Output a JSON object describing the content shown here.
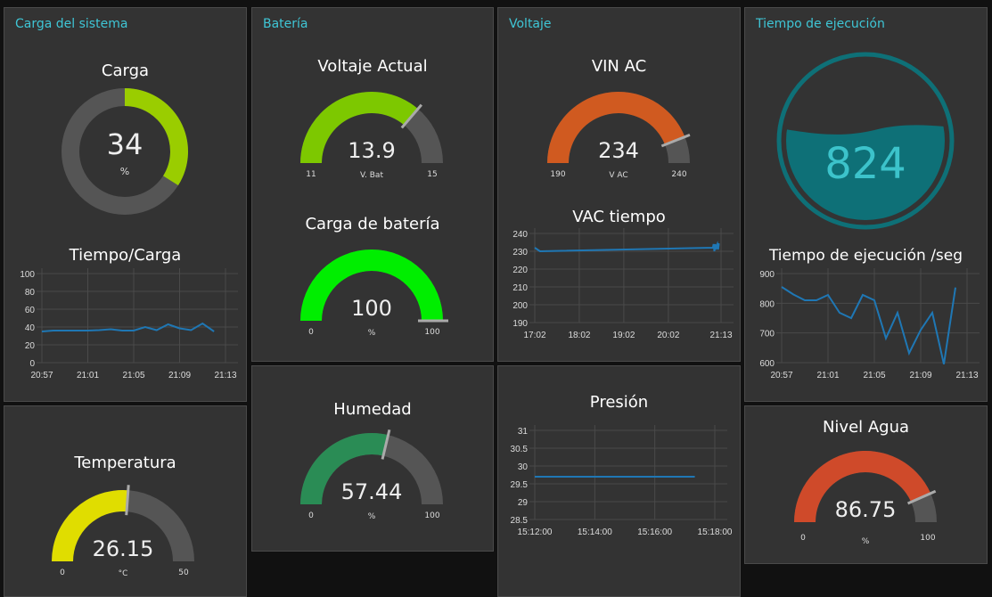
{
  "groups": {
    "carga": "Carga del sistema",
    "bateria": "Batería",
    "voltaje": "Voltaje",
    "tiempo": "Tiempo de ejecución"
  },
  "widgets": {
    "carga": {
      "title": "Carga",
      "value": "34",
      "unit": "%",
      "fraction": 0.34,
      "color": "#9acd00"
    },
    "voltaje_actual": {
      "title": "Voltaje Actual",
      "value": "13.9",
      "unit": "V. Bat",
      "min": "11",
      "max": "15",
      "fraction": 0.725,
      "color": "#7dc800"
    },
    "carga_bateria": {
      "title": "Carga de batería",
      "value": "100",
      "unit": "%",
      "min": "0",
      "max": "100",
      "fraction": 1.0,
      "color": "#00ee00"
    },
    "vin_ac": {
      "title": "VIN AC",
      "value": "234",
      "unit": "V AC",
      "min": "190",
      "max": "240",
      "fraction": 0.88,
      "color": "#d05a20"
    },
    "humedad": {
      "title": "Humedad",
      "value": "57.44",
      "unit": "%",
      "min": "0",
      "max": "100",
      "fraction": 0.5744,
      "color": "#2a8c55"
    },
    "temperatura": {
      "title": "Temperatura",
      "value": "26.15",
      "unit": "°C",
      "min": "0",
      "max": "50",
      "fraction": 0.523,
      "color": "#e0dd00"
    },
    "nivel_agua": {
      "title": "Nivel Agua",
      "value": "86.75",
      "unit": "%",
      "min": "0",
      "max": "100",
      "fraction": 0.8675,
      "color": "#cf4a2a"
    },
    "tiempo_ejec": {
      "value": "824",
      "color": "#0e7077",
      "text_color": "#3cc3cb"
    }
  },
  "chart_data": [
    {
      "id": "carga",
      "type": "line",
      "title": "Tiempo/Carga",
      "yticks": [
        "0",
        "20",
        "40",
        "60",
        "80",
        "100"
      ],
      "ylim": [
        0,
        100
      ],
      "xticks": [
        "20:57",
        "21:01",
        "21:05",
        "21:09",
        "21:13"
      ],
      "xlim": [
        0,
        16
      ],
      "x": [
        0,
        1,
        2,
        3,
        4,
        5,
        6,
        7,
        8,
        9,
        10,
        11,
        12,
        13,
        14,
        15
      ],
      "values": [
        35,
        36,
        36,
        36,
        36,
        36.5,
        37.5,
        36,
        36,
        40,
        36.5,
        43,
        38.5,
        36.5,
        44,
        35
      ]
    },
    {
      "id": "tiempo",
      "type": "line",
      "title": "Tiempo de ejecución /seg",
      "yticks": [
        "600",
        "700",
        "800",
        "900"
      ],
      "ylim": [
        600,
        900
      ],
      "xticks": [
        "20:57",
        "21:01",
        "21:05",
        "21:09",
        "21:13"
      ],
      "xlim": [
        0,
        16
      ],
      "x": [
        0,
        1,
        2,
        3,
        4,
        5,
        6,
        7,
        8,
        9,
        10,
        11,
        12,
        13,
        14,
        15
      ],
      "values": [
        855,
        830,
        810,
        810,
        828,
        768,
        750,
        828,
        810,
        682,
        768,
        632,
        710,
        768,
        595,
        853
      ]
    },
    {
      "id": "vac",
      "type": "line",
      "title": "VAC tiempo",
      "yticks": [
        "190",
        "200",
        "210",
        "220",
        "230",
        "240"
      ],
      "ylim": [
        190,
        240
      ],
      "xticks": [
        "17:02",
        "18:02",
        "19:02",
        "20:02",
        "21:13"
      ],
      "xtickpos": [
        0,
        60,
        120,
        180,
        251
      ],
      "xlim": [
        0,
        251
      ],
      "x": [
        0,
        7,
        240,
        241,
        242,
        243,
        244,
        245,
        246,
        247,
        248,
        249
      ],
      "values": [
        232,
        230,
        232,
        234,
        230,
        234,
        231,
        233,
        234,
        231,
        234,
        234
      ]
    },
    {
      "id": "presion",
      "type": "line",
      "title": "Presión",
      "yticks": [
        "28.5",
        "29",
        "29.5",
        "30",
        "30.5",
        "31"
      ],
      "ylim": [
        28.5,
        31
      ],
      "xticks": [
        "15:12:00",
        "15:14:00",
        "15:16:00",
        "15:18:00"
      ],
      "xlim": [
        0,
        360
      ],
      "x": [
        0,
        320
      ],
      "values": [
        29.7,
        29.7
      ]
    }
  ]
}
